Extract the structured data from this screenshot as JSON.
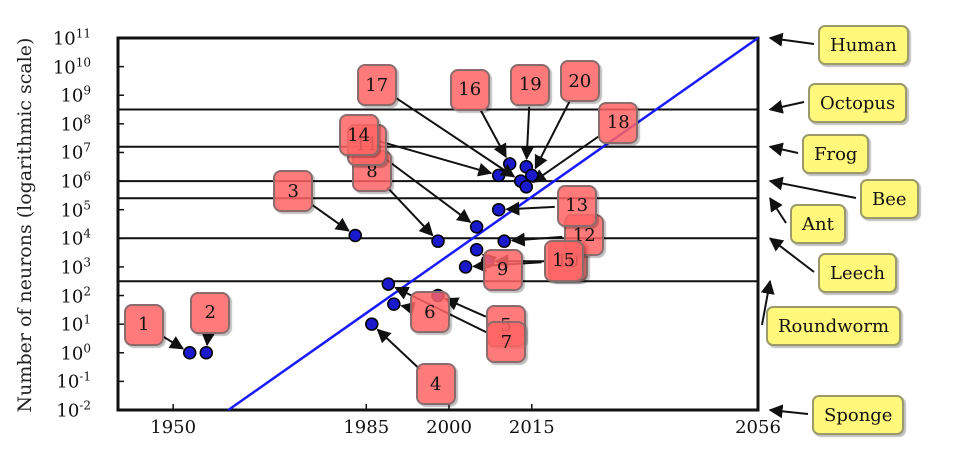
{
  "chart_data": {
    "type": "scatter",
    "ylabel": "Number of neurons (logarithmic scale)",
    "yscale": "log",
    "ylim_exponents": [
      -2,
      11
    ],
    "xlim": [
      1940,
      2056
    ],
    "y_ticks": [
      "10^11",
      "10^10",
      "10^9",
      "10^8",
      "10^7",
      "10^6",
      "10^5",
      "10^4",
      "10^3",
      "10^2",
      "10^1",
      "10^0",
      "10^-1",
      "10^-2"
    ],
    "x_ticks": [
      "1950",
      "1985",
      "2000",
      "2015",
      "2056"
    ],
    "trend_line": {
      "color": "#1a1aff",
      "from": {
        "x": 1960,
        "y_exp": -2
      },
      "to": {
        "x": 2056,
        "y_exp": 11
      }
    },
    "reference_lines": [
      {
        "label": "Human",
        "y_exp": 11
      },
      {
        "label": "Octopus",
        "y_exp": 8.5
      },
      {
        "label": "Frog",
        "y_exp": 7.2
      },
      {
        "label": "Bee",
        "y_exp": 6.0
      },
      {
        "label": "Ant",
        "y_exp": 5.4
      },
      {
        "label": "Leech",
        "y_exp": 4.0
      },
      {
        "label": "Roundworm",
        "y_exp": 2.5
      },
      {
        "label": "Sponge",
        "y_exp": -2
      }
    ],
    "points": [
      {
        "label": "1",
        "x": 1953,
        "y_exp": 0.0
      },
      {
        "label": "2",
        "x": 1956,
        "y_exp": 0.0
      },
      {
        "label": "3",
        "x": 1983,
        "y_exp": 4.1
      },
      {
        "label": "4",
        "x": 1986,
        "y_exp": 1.0
      },
      {
        "label": "5",
        "x": 1998,
        "y_exp": 2.0
      },
      {
        "label": "6",
        "x": 1990,
        "y_exp": 1.7
      },
      {
        "label": "7",
        "x": 1989,
        "y_exp": 2.4
      },
      {
        "label": "8",
        "x": 1998,
        "y_exp": 3.9
      },
      {
        "label": "9",
        "x": 2005,
        "y_exp": 3.6
      },
      {
        "label": "10",
        "x": 2007,
        "y_exp": 3.2
      },
      {
        "label": "11",
        "x": 2005,
        "y_exp": 4.4
      },
      {
        "label": "12",
        "x": 2010,
        "y_exp": 3.9
      },
      {
        "label": "13",
        "x": 2009,
        "y_exp": 5.0
      },
      {
        "label": "14",
        "x": 2009,
        "y_exp": 6.2
      },
      {
        "label": "15",
        "x": 2003,
        "y_exp": 3.0
      },
      {
        "label": "16",
        "x": 2011,
        "y_exp": 6.6
      },
      {
        "label": "17",
        "x": 2013,
        "y_exp": 6.0
      },
      {
        "label": "18",
        "x": 2014,
        "y_exp": 5.8
      },
      {
        "label": "19",
        "x": 2014,
        "y_exp": 6.5
      },
      {
        "label": "20",
        "x": 2015,
        "y_exp": 6.2
      }
    ]
  }
}
